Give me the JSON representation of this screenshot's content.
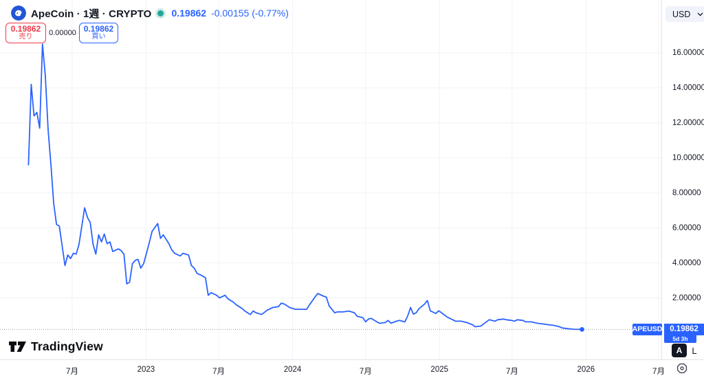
{
  "header": {
    "symbol_title": "ApeCoin · 1週 · CRYPTO",
    "last_price": "0.19862",
    "change_text": "-0.00155 (-0.77%)",
    "market_status": "open"
  },
  "order_panel": {
    "sell_price": "0.19862",
    "sell_label": "売り",
    "spread": "0.00000",
    "buy_price": "0.19862",
    "buy_label": "買い"
  },
  "price_scale": {
    "currency": "USD",
    "ticks": [
      {
        "value": 16,
        "label": "16.00000"
      },
      {
        "value": 14,
        "label": "14.00000"
      },
      {
        "value": 12,
        "label": "12.00000"
      },
      {
        "value": 10,
        "label": "10.00000"
      },
      {
        "value": 8,
        "label": "8.00000"
      },
      {
        "value": 6,
        "label": "6.00000"
      },
      {
        "value": 4,
        "label": "4.00000"
      },
      {
        "value": 2,
        "label": "2.00000"
      }
    ]
  },
  "time_scale": {
    "ticks": [
      {
        "label": "7月",
        "date": "2022-07-01"
      },
      {
        "label": "2023",
        "date": "2023-01-01"
      },
      {
        "label": "7月",
        "date": "2023-07-01"
      },
      {
        "label": "2024",
        "date": "2024-01-01"
      },
      {
        "label": "7月",
        "date": "2024-07-01"
      },
      {
        "label": "2025",
        "date": "2025-01-01"
      },
      {
        "label": "7月",
        "date": "2025-07-01"
      },
      {
        "label": "2026",
        "date": "2026-01-01"
      },
      {
        "label": "7月",
        "date": "2026-07-01"
      }
    ]
  },
  "badges": {
    "symbol": "APEUSD",
    "current_price": "0.19862",
    "countdown": "5d 3h"
  },
  "scale_buttons": {
    "auto": "A",
    "log": "L"
  },
  "attribution": {
    "logo_text": "TradingView"
  },
  "colors": {
    "blue": "#2962FF",
    "red": "#F23645",
    "text": "#131722",
    "muted": "#787B86",
    "grid": "#F0F2F6",
    "border": "#E0E3EB",
    "teal": "#26A69A",
    "pill": "#F0F3FA"
  },
  "chart_data": {
    "type": "line",
    "title": "ApeCoin (APE/USD) · 1 week · weekly close line",
    "ylabel": "USD",
    "xlabel": "",
    "legend": "none",
    "grid": "faint",
    "ylim": [
      0,
      17.5
    ],
    "x_range": [
      "2022-03-14",
      "2026-07-01"
    ],
    "current_price": 0.19862,
    "line_color": "#2962FF",
    "series": [
      {
        "name": "APEUSD",
        "points": [
          [
            "2022-03-14",
            9.6
          ],
          [
            "2022-03-21",
            14.2
          ],
          [
            "2022-03-28",
            12.4
          ],
          [
            "2022-04-04",
            12.6
          ],
          [
            "2022-04-11",
            11.7
          ],
          [
            "2022-04-18",
            16.5
          ],
          [
            "2022-04-25",
            14.7
          ],
          [
            "2022-05-02",
            11.6
          ],
          [
            "2022-05-09",
            9.6
          ],
          [
            "2022-05-16",
            7.4
          ],
          [
            "2022-05-23",
            6.2
          ],
          [
            "2022-05-30",
            6.1
          ],
          [
            "2022-06-13",
            3.85
          ],
          [
            "2022-06-20",
            4.45
          ],
          [
            "2022-06-27",
            4.25
          ],
          [
            "2022-07-04",
            4.55
          ],
          [
            "2022-07-11",
            4.5
          ],
          [
            "2022-07-18",
            5.05
          ],
          [
            "2022-08-01",
            7.15
          ],
          [
            "2022-08-08",
            6.6
          ],
          [
            "2022-08-15",
            6.3
          ],
          [
            "2022-08-22",
            5.05
          ],
          [
            "2022-08-29",
            4.5
          ],
          [
            "2022-09-05",
            5.6
          ],
          [
            "2022-09-12",
            5.2
          ],
          [
            "2022-09-19",
            5.65
          ],
          [
            "2022-09-26",
            5.1
          ],
          [
            "2022-10-03",
            5.2
          ],
          [
            "2022-10-10",
            4.65
          ],
          [
            "2022-10-24",
            4.8
          ],
          [
            "2022-10-31",
            4.7
          ],
          [
            "2022-11-07",
            4.5
          ],
          [
            "2022-11-14",
            2.8
          ],
          [
            "2022-11-21",
            2.9
          ],
          [
            "2022-11-28",
            3.95
          ],
          [
            "2022-12-05",
            4.15
          ],
          [
            "2022-12-12",
            4.2
          ],
          [
            "2022-12-19",
            3.7
          ],
          [
            "2022-12-26",
            3.95
          ],
          [
            "2023-01-02",
            4.55
          ],
          [
            "2023-01-09",
            5.15
          ],
          [
            "2023-01-16",
            5.8
          ],
          [
            "2023-01-30",
            6.25
          ],
          [
            "2023-02-06",
            5.4
          ],
          [
            "2023-02-13",
            5.6
          ],
          [
            "2023-02-27",
            5.1
          ],
          [
            "2023-03-06",
            4.75
          ],
          [
            "2023-03-13",
            4.55
          ],
          [
            "2023-03-27",
            4.4
          ],
          [
            "2023-04-03",
            4.55
          ],
          [
            "2023-04-17",
            4.45
          ],
          [
            "2023-04-24",
            3.85
          ],
          [
            "2023-05-01",
            3.7
          ],
          [
            "2023-05-08",
            3.4
          ],
          [
            "2023-05-22",
            3.25
          ],
          [
            "2023-05-29",
            3.15
          ],
          [
            "2023-06-05",
            2.15
          ],
          [
            "2023-06-12",
            2.3
          ],
          [
            "2023-06-26",
            2.15
          ],
          [
            "2023-07-03",
            2.0
          ],
          [
            "2023-07-17",
            2.15
          ],
          [
            "2023-07-24",
            1.95
          ],
          [
            "2023-08-07",
            1.75
          ],
          [
            "2023-08-14",
            1.6
          ],
          [
            "2023-08-28",
            1.4
          ],
          [
            "2023-09-04",
            1.25
          ],
          [
            "2023-09-18",
            1.05
          ],
          [
            "2023-09-25",
            1.25
          ],
          [
            "2023-10-02",
            1.15
          ],
          [
            "2023-10-16",
            1.05
          ],
          [
            "2023-10-30",
            1.3
          ],
          [
            "2023-11-13",
            1.45
          ],
          [
            "2023-11-27",
            1.5
          ],
          [
            "2023-12-04",
            1.7
          ],
          [
            "2023-12-11",
            1.65
          ],
          [
            "2023-12-25",
            1.45
          ],
          [
            "2024-01-08",
            1.35
          ],
          [
            "2024-01-22",
            1.35
          ],
          [
            "2024-02-05",
            1.35
          ],
          [
            "2024-02-12",
            1.6
          ],
          [
            "2024-02-26",
            2.05
          ],
          [
            "2024-03-04",
            2.25
          ],
          [
            "2024-03-18",
            2.1
          ],
          [
            "2024-03-25",
            2.05
          ],
          [
            "2024-04-01",
            1.55
          ],
          [
            "2024-04-15",
            1.15
          ],
          [
            "2024-04-22",
            1.2
          ],
          [
            "2024-05-06",
            1.2
          ],
          [
            "2024-05-20",
            1.25
          ],
          [
            "2024-06-03",
            1.15
          ],
          [
            "2024-06-10",
            0.95
          ],
          [
            "2024-06-24",
            0.87
          ],
          [
            "2024-07-01",
            0.63
          ],
          [
            "2024-07-08",
            0.79
          ],
          [
            "2024-07-15",
            0.83
          ],
          [
            "2024-07-29",
            0.63
          ],
          [
            "2024-08-05",
            0.55
          ],
          [
            "2024-08-19",
            0.59
          ],
          [
            "2024-08-26",
            0.71
          ],
          [
            "2024-09-02",
            0.55
          ],
          [
            "2024-09-16",
            0.67
          ],
          [
            "2024-09-23",
            0.71
          ],
          [
            "2024-10-07",
            0.63
          ],
          [
            "2024-10-14",
            0.98
          ],
          [
            "2024-10-21",
            1.45
          ],
          [
            "2024-10-28",
            1.07
          ],
          [
            "2024-11-04",
            1.15
          ],
          [
            "2024-11-11",
            1.38
          ],
          [
            "2024-11-25",
            1.65
          ],
          [
            "2024-12-02",
            1.85
          ],
          [
            "2024-12-09",
            1.26
          ],
          [
            "2024-12-23",
            1.11
          ],
          [
            "2024-12-30",
            1.26
          ],
          [
            "2025-01-06",
            1.15
          ],
          [
            "2025-01-20",
            0.91
          ],
          [
            "2025-02-03",
            0.75
          ],
          [
            "2025-02-10",
            0.67
          ],
          [
            "2025-02-24",
            0.67
          ],
          [
            "2025-03-10",
            0.59
          ],
          [
            "2025-03-24",
            0.47
          ],
          [
            "2025-03-31",
            0.35
          ],
          [
            "2025-04-14",
            0.39
          ],
          [
            "2025-04-21",
            0.51
          ],
          [
            "2025-05-05",
            0.75
          ],
          [
            "2025-05-19",
            0.67
          ],
          [
            "2025-05-26",
            0.75
          ],
          [
            "2025-06-09",
            0.79
          ],
          [
            "2025-06-16",
            0.75
          ],
          [
            "2025-06-30",
            0.71
          ],
          [
            "2025-07-07",
            0.67
          ],
          [
            "2025-07-14",
            0.75
          ],
          [
            "2025-07-28",
            0.71
          ],
          [
            "2025-08-04",
            0.63
          ],
          [
            "2025-08-18",
            0.63
          ],
          [
            "2025-09-01",
            0.55
          ],
          [
            "2025-09-15",
            0.51
          ],
          [
            "2025-09-29",
            0.47
          ],
          [
            "2025-10-13",
            0.43
          ],
          [
            "2025-10-27",
            0.35
          ],
          [
            "2025-11-03",
            0.28
          ],
          [
            "2025-11-17",
            0.24
          ],
          [
            "2025-12-01",
            0.21
          ],
          [
            "2025-12-22",
            0.19862
          ]
        ]
      }
    ]
  }
}
